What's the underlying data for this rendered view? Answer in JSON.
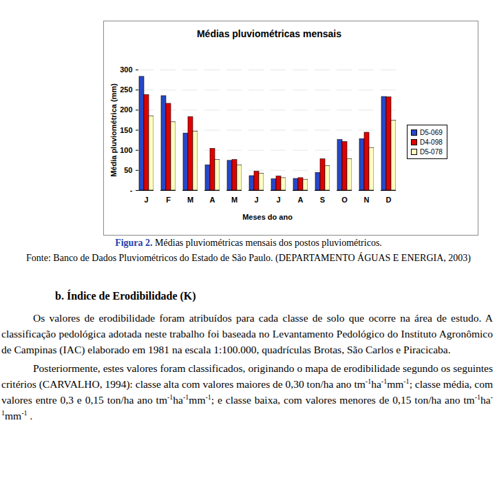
{
  "chart_data": {
    "type": "bar",
    "title": "Médias pluviométricas mensais",
    "ylabel": "Média pluviométrica (mm)",
    "xlabel": "Meses do ano",
    "categories": [
      "J",
      "F",
      "M",
      "A",
      "M",
      "J",
      "J",
      "A",
      "S",
      "O",
      "N",
      "D"
    ],
    "series": [
      {
        "name": "D5-069",
        "color": "#2648c8",
        "values": [
          283,
          235,
          142,
          63,
          74,
          36,
          28,
          29,
          44,
          126,
          128,
          233
        ]
      },
      {
        "name": "D4-098",
        "color": "#e00000",
        "values": [
          238,
          216,
          183,
          104,
          76,
          47,
          35,
          31,
          78,
          121,
          144,
          232
        ]
      },
      {
        "name": "D5-078",
        "color": "#ffffc0",
        "values": [
          185,
          170,
          147,
          76,
          63,
          42,
          31,
          27,
          61,
          78,
          106,
          174
        ]
      }
    ],
    "ylim": [
      0,
      300
    ],
    "yticks": [
      {
        "value": 0,
        "label": "-"
      },
      50,
      100,
      150,
      200,
      250,
      300
    ],
    "grid": true,
    "legend": "right"
  },
  "caption": {
    "label": "Figura 2.",
    "text": "Médias pluviométricas mensais dos postos pluviométricos."
  },
  "source": "Fonte: Banco de Dados Pluviométricos do Estado de São Paulo.  (DEPARTAMENTO ÁGUAS E ENERGIA, 2003)",
  "heading": "b. Índice de Erodibilidade  (K)",
  "paragraphs": [
    [
      {
        "text": "Os valores de erodibilidade foram atribuídos para cada classe de solo que ocorre na área de estudo. A classificação pedológica adotada neste trabalho foi baseada no Levantamento Pedológico do Instituto Agronômico de Campinas (IAC) elaborado em 1981 na escala 1:100.000, quadrículas Brotas, São Carlos e Piracicaba."
      }
    ],
    [
      {
        "text": "Posteriormente, estes valores foram classificados, originando o mapa de erodibilidade segundo os seguintes critérios (CARVALHO, 1994): classe alta com valores maiores de 0,30 ton/ha ano tm"
      },
      {
        "sup": "-1"
      },
      {
        "text": "ha"
      },
      {
        "sup": "-1"
      },
      {
        "text": "mm"
      },
      {
        "sup": "-1"
      },
      {
        "text": "; classe média, com valores entre 0,3 e 0,15 ton/ha ano tm"
      },
      {
        "sup": "-1"
      },
      {
        "text": "ha"
      },
      {
        "sup": "-1"
      },
      {
        "text": "mm"
      },
      {
        "sup": "-1"
      },
      {
        "text": "; e classe baixa, com valores menores de 0,15 ton/ha ano tm"
      },
      {
        "sup": "-1"
      },
      {
        "text": "ha"
      },
      {
        "sup": "-1"
      },
      {
        "text": "mm"
      },
      {
        "sup": "-1"
      },
      {
        "text": " ."
      }
    ]
  ]
}
